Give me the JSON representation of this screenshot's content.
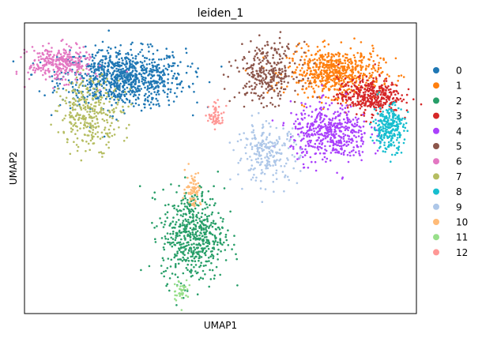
{
  "chart_data": {
    "type": "scatter",
    "title": "leiden_1",
    "xlabel": "UMAP1",
    "ylabel": "UMAP2",
    "xlim": [
      0,
      100
    ],
    "ylim": [
      0,
      100
    ],
    "grid": false,
    "axis_ticks": false,
    "legend_position": "right",
    "series": [
      {
        "name": "0",
        "color": "#1f77b4",
        "n_points": 900,
        "center": [
          25,
          81
        ],
        "spread": [
          8,
          5
        ]
      },
      {
        "name": "1",
        "color": "#ff7f0e",
        "n_points": 620,
        "center": [
          79,
          83
        ],
        "spread": [
          6,
          4
        ]
      },
      {
        "name": "2",
        "color": "#279e68",
        "n_points": 560,
        "center": [
          43,
          27
        ],
        "spread": [
          4,
          8
        ]
      },
      {
        "name": "3",
        "color": "#d62728",
        "n_points": 380,
        "center": [
          88,
          75
        ],
        "spread": [
          4,
          3
        ]
      },
      {
        "name": "4",
        "color": "#aa40fc",
        "n_points": 480,
        "center": [
          78,
          62
        ],
        "spread": [
          5,
          5
        ]
      },
      {
        "name": "5",
        "color": "#8c564b",
        "n_points": 300,
        "center": [
          62,
          83
        ],
        "spread": [
          4,
          5
        ]
      },
      {
        "name": "6",
        "color": "#e377c2",
        "n_points": 300,
        "center": [
          9,
          86
        ],
        "spread": [
          4,
          3
        ]
      },
      {
        "name": "7",
        "color": "#b5bd61",
        "n_points": 320,
        "center": [
          17,
          69
        ],
        "spread": [
          4,
          6
        ]
      },
      {
        "name": "8",
        "color": "#17becf",
        "n_points": 260,
        "center": [
          93,
          64
        ],
        "spread": [
          2,
          4
        ]
      },
      {
        "name": "9",
        "color": "#aec7e8",
        "n_points": 230,
        "center": [
          62,
          55
        ],
        "spread": [
          4,
          5
        ]
      },
      {
        "name": "10",
        "color": "#ffbb78",
        "n_points": 70,
        "center": [
          43,
          43
        ],
        "spread": [
          1,
          3
        ]
      },
      {
        "name": "11",
        "color": "#98df8a",
        "n_points": 40,
        "center": [
          40,
          8
        ],
        "spread": [
          1,
          2
        ]
      },
      {
        "name": "12",
        "color": "#ff9896",
        "n_points": 60,
        "center": [
          49,
          68
        ],
        "spread": [
          1,
          2
        ]
      }
    ]
  }
}
